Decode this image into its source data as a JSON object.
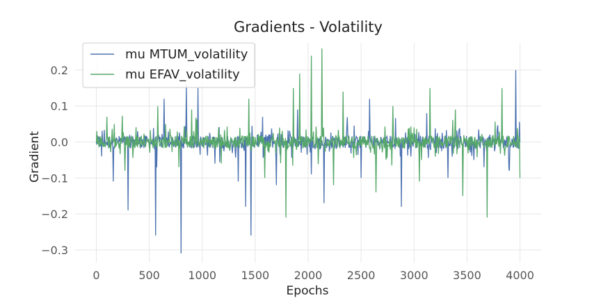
{
  "chart_data": {
    "type": "line",
    "title": "Gradients - Volatility",
    "xlabel": "Epochs",
    "ylabel": "Gradient",
    "xlim": [
      -200,
      4200
    ],
    "ylim": [
      -0.335,
      0.275
    ],
    "xticks": [
      0,
      500,
      1000,
      1500,
      2000,
      2500,
      3000,
      3500,
      4000
    ],
    "yticks": [
      -0.3,
      -0.2,
      -0.1,
      0.0,
      0.1,
      0.2
    ],
    "ytick_labels": [
      "−0.3",
      "−0.2",
      "−0.1",
      "0.0",
      "0.1",
      "0.2"
    ],
    "grid": true,
    "legend_position": "top-left",
    "series": [
      {
        "name": "mu MTUM_volatility",
        "color": "#4c72b0",
        "x": [
          0,
          50,
          160,
          300,
          380,
          560,
          640,
          800,
          850,
          870,
          960,
          1000,
          1120,
          1230,
          1340,
          1410,
          1460,
          1550,
          1700,
          1820,
          1900,
          2030,
          2150,
          2300,
          2500,
          2580,
          2760,
          2880,
          3000,
          3120,
          3320,
          3500,
          3660,
          3780,
          3900,
          3960,
          4000
        ],
        "values": [
          0.0,
          -0.04,
          -0.11,
          -0.19,
          0.0,
          -0.26,
          0.12,
          -0.31,
          0.16,
          0.0,
          0.15,
          0.0,
          -0.06,
          0.0,
          -0.11,
          -0.18,
          -0.26,
          0.0,
          -0.12,
          0.0,
          0.09,
          -0.09,
          -0.17,
          0.0,
          -0.1,
          0.12,
          0.0,
          -0.18,
          0.0,
          0.08,
          -0.1,
          0.0,
          -0.07,
          0.0,
          -0.08,
          0.2,
          0.0
        ]
      },
      {
        "name": "mu EFAV_volatility",
        "color": "#55a868",
        "x": [
          0,
          100,
          270,
          410,
          580,
          780,
          900,
          1010,
          1180,
          1300,
          1440,
          1590,
          1680,
          1790,
          1860,
          1920,
          1970,
          2030,
          2130,
          2240,
          2330,
          2500,
          2640,
          2800,
          2940,
          3050,
          3150,
          3260,
          3390,
          3460,
          3600,
          3690,
          3830,
          3960,
          4000
        ],
        "values": [
          0.0,
          0.07,
          -0.08,
          0.0,
          0.1,
          -0.07,
          0.09,
          0.0,
          -0.06,
          0.0,
          0.12,
          -0.1,
          0.0,
          -0.21,
          0.15,
          0.19,
          0.0,
          0.24,
          0.26,
          -0.12,
          0.14,
          0.0,
          -0.14,
          0.1,
          0.0,
          -0.11,
          0.15,
          0.0,
          0.09,
          -0.15,
          0.0,
          -0.21,
          0.15,
          0.0,
          -0.1
        ]
      }
    ]
  }
}
